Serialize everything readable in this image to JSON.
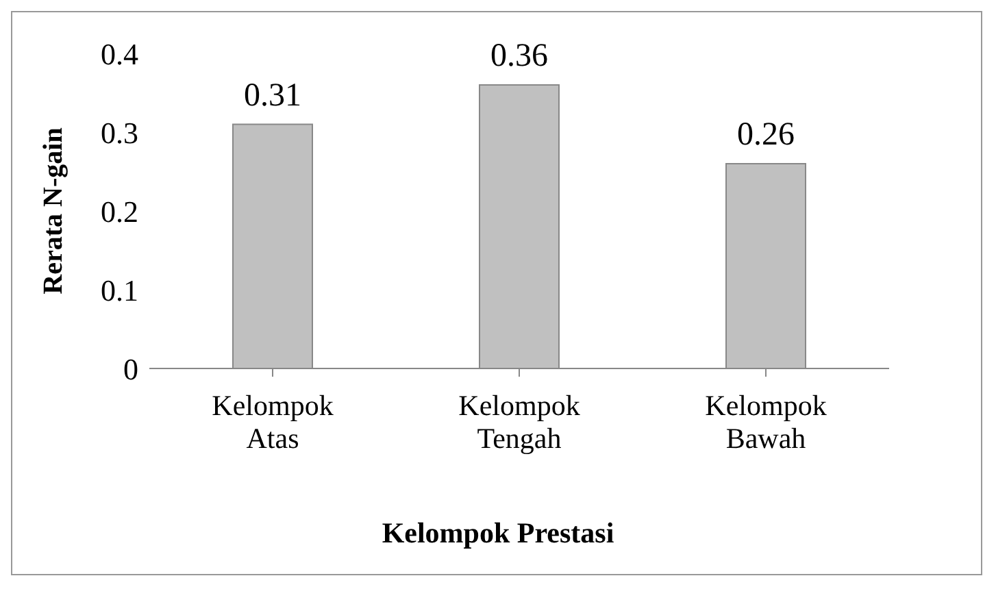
{
  "chart_data": {
    "type": "bar",
    "xlabel": "Kelompok Prestasi",
    "ylabel": "Rerata N-gain",
    "categories": [
      "Kelompok Atas",
      "Kelompok Tengah",
      "Kelompok Bawah"
    ],
    "values": [
      0.31,
      0.36,
      0.26
    ],
    "color": "#c0c0c0",
    "ylim": [
      0,
      0.4
    ],
    "yticks": [
      0,
      0.1,
      0.2,
      0.3,
      0.4
    ],
    "grid": false,
    "legend": false,
    "data_labels": true
  }
}
